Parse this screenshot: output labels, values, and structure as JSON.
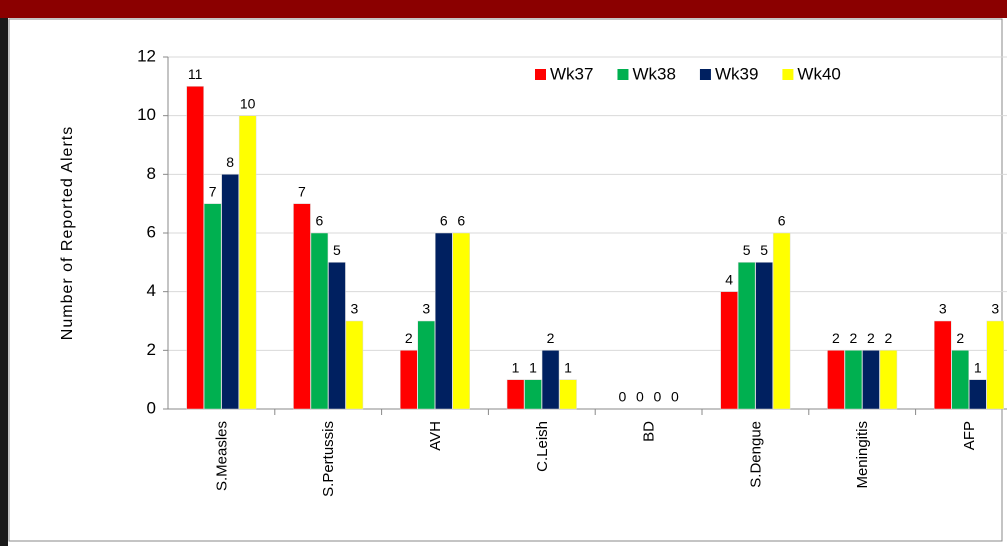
{
  "chart_data": {
    "type": "bar",
    "ylabel": "Number  of  Reported  Alerts",
    "categories": [
      "S.Measles",
      "S.Pertussis",
      "AVH",
      "C.Leish",
      "BD",
      "S.Dengue",
      "Meningitis",
      "AFP"
    ],
    "series": [
      {
        "name": "Wk37",
        "color": "#ff0000",
        "values": [
          11,
          7,
          2,
          1,
          0,
          4,
          2,
          3
        ]
      },
      {
        "name": "Wk38",
        "color": "#00b050",
        "values": [
          7,
          6,
          3,
          1,
          0,
          5,
          2,
          2
        ]
      },
      {
        "name": "Wk39",
        "color": "#002060",
        "values": [
          8,
          5,
          6,
          2,
          0,
          5,
          2,
          1
        ]
      },
      {
        "name": "Wk40",
        "color": "#ffff00",
        "values": [
          10,
          3,
          6,
          1,
          0,
          6,
          2,
          3
        ]
      }
    ],
    "ylim": [
      0,
      12
    ],
    "yticks": [
      0,
      2,
      4,
      6,
      8,
      10,
      12
    ],
    "grid": true,
    "legend": "top"
  }
}
